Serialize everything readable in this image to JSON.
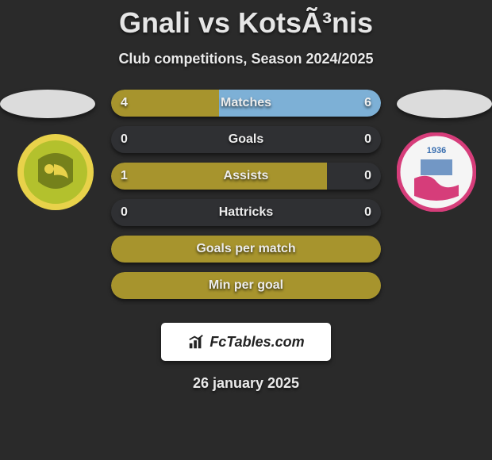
{
  "background_color": "#2a2a2a",
  "title": {
    "text": "Gnali vs KotsÃ³nis",
    "color": "#e6e6e6",
    "fontsize": 36,
    "fontweight": 700
  },
  "subtitle": {
    "text": "Club competitions, Season 2024/2025",
    "color": "#eaeaea",
    "fontsize": 18,
    "fontweight": 600
  },
  "colors": {
    "bar_track": "#2f3033",
    "left_fill": "#a7942d",
    "right_fill": "#7db0d6",
    "left_team_primary": "#b3c12d",
    "left_team_secondary": "#e8d24a",
    "right_team_primary": "#f5f5f5",
    "right_team_accent": "#d63d7a",
    "right_team_blue": "#3a6fb0",
    "ellipse": "#dcdcdc",
    "footer_bg": "#ffffff",
    "footer_text": "#222222"
  },
  "teams": {
    "left": {
      "badge_bg": "#b3c12d",
      "badge_ring": "#e8d24a"
    },
    "right": {
      "badge_bg": "#f5f5f5",
      "badge_ring": "#d63d7a",
      "badge_year": "1936"
    }
  },
  "bars": [
    {
      "label": "Matches",
      "left_value": "4",
      "right_value": "6",
      "left_pct": 40,
      "right_pct": 60
    },
    {
      "label": "Goals",
      "left_value": "0",
      "right_value": "0",
      "left_pct": 0,
      "right_pct": 0
    },
    {
      "label": "Assists",
      "left_value": "1",
      "right_value": "0",
      "left_pct": 80,
      "right_pct": 0
    },
    {
      "label": "Hattricks",
      "left_value": "0",
      "right_value": "0",
      "left_pct": 0,
      "right_pct": 0
    },
    {
      "label": "Goals per match",
      "left_value": "",
      "right_value": "",
      "left_pct": 100,
      "right_pct": 0
    },
    {
      "label": "Min per goal",
      "left_value": "",
      "right_value": "",
      "left_pct": 100,
      "right_pct": 0
    }
  ],
  "bar_style": {
    "height": 34,
    "radius": 17,
    "gap": 12,
    "label_fontsize": 16,
    "value_fontsize": 16
  },
  "footer": {
    "brand": "FcTables.com",
    "icon_color": "#222222"
  },
  "date": {
    "text": "26 january 2025",
    "fontsize": 18,
    "color": "#eaeaea"
  }
}
